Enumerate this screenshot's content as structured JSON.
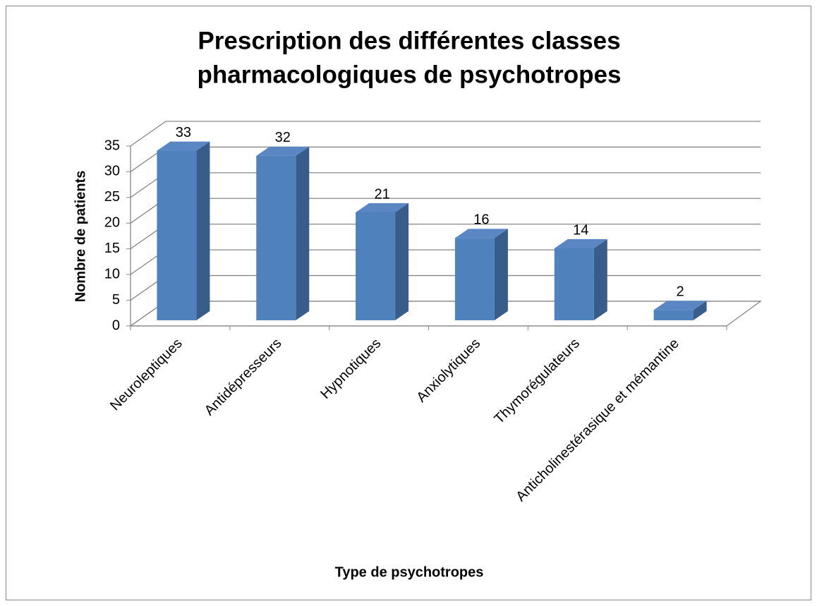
{
  "chart_data": {
    "type": "bar3d",
    "title": [
      "Prescription des différentes classes",
      "pharmacologiques de psychotropes"
    ],
    "x_label": "Type de psychotropes",
    "y_label": "Nombre de patients",
    "categories": [
      "Neuroleptiques",
      "Antidépresseurs",
      "Hypnotiques",
      "Anxiolytiques",
      "Thymorégulateurs",
      "Anticholinestérasique et mémantine"
    ],
    "values": [
      33,
      32,
      21,
      16,
      14,
      2
    ],
    "color": "#4f81bd",
    "ylim": [
      0,
      35
    ],
    "yticks": [
      0,
      5,
      10,
      15,
      20,
      25,
      30,
      35
    ],
    "grid": true
  }
}
